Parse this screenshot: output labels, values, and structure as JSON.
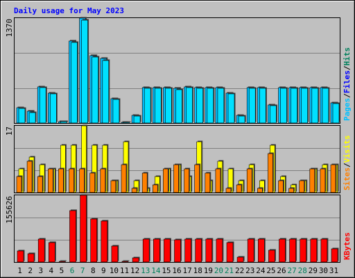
{
  "chart_data": [
    {
      "type": "bar",
      "title": "Daily usage for May 2023",
      "categories": [
        "1",
        "2",
        "3",
        "4",
        "5",
        "6",
        "7",
        "8",
        "9",
        "10",
        "11",
        "12",
        "13",
        "14",
        "15",
        "16",
        "17",
        "18",
        "19",
        "20",
        "21",
        "22",
        "23",
        "24",
        "25",
        "26",
        "27",
        "28",
        "29",
        "30",
        "31"
      ],
      "weekend_days": [
        "6",
        "7",
        "13",
        "14",
        "20",
        "21",
        "27",
        "28"
      ],
      "ymax_label": "1370",
      "ylim": [
        0,
        1370
      ],
      "ylabel_parts": [
        "Pages",
        "Files",
        "Hits"
      ],
      "separator": "/",
      "series": [
        {
          "name": "Hits",
          "values": [
            200,
            150,
            470,
            390,
            20,
            1070,
            1370,
            880,
            840,
            320,
            10,
            100,
            460,
            460,
            460,
            450,
            470,
            460,
            460,
            460,
            390,
            100,
            460,
            460,
            240,
            460,
            460,
            460,
            460,
            460,
            260
          ]
        },
        {
          "name": "Files",
          "values": [
            190,
            140,
            460,
            380,
            15,
            1050,
            1340,
            860,
            820,
            310,
            5,
            90,
            450,
            450,
            450,
            440,
            460,
            450,
            450,
            450,
            380,
            90,
            450,
            450,
            230,
            450,
            450,
            450,
            450,
            450,
            250
          ]
        },
        {
          "name": "Pages",
          "values": [
            0,
            0,
            0,
            0,
            0,
            0,
            0,
            0,
            0,
            0,
            0,
            0,
            0,
            0,
            0,
            0,
            0,
            0,
            0,
            0,
            0,
            0,
            0,
            0,
            0,
            0,
            0,
            0,
            0,
            0,
            0
          ]
        }
      ]
    },
    {
      "type": "bar",
      "ymax_label": "17",
      "ylim": [
        0,
        17
      ],
      "ylabel_parts": [
        "Sites",
        "Visits"
      ],
      "separator": "/",
      "series": [
        {
          "name": "Visits",
          "values": [
            6,
            9,
            7,
            6,
            12,
            12,
            17,
            12,
            12,
            3,
            13,
            3,
            1,
            4,
            6,
            7,
            4,
            13,
            3,
            8,
            6,
            3,
            7,
            3,
            12,
            4,
            2,
            3,
            6,
            7,
            7
          ]
        },
        {
          "name": "Sites",
          "values": [
            4,
            8,
            4,
            6,
            6,
            6,
            6,
            5,
            6,
            3,
            7,
            1,
            5,
            2,
            6,
            7,
            6,
            7,
            5,
            6,
            1,
            2,
            6,
            1,
            10,
            3,
            1,
            3,
            6,
            6,
            7
          ]
        }
      ]
    },
    {
      "type": "bar",
      "ymax_label": "155626",
      "ylim": [
        0,
        155626
      ],
      "ylabel_parts": [
        "KBytes"
      ],
      "separator": "",
      "series": [
        {
          "name": "KBytes",
          "values": [
            26000,
            20000,
            54000,
            45000,
            2000,
            120000,
            155626,
            100000,
            96000,
            37000,
            1000,
            10000,
            54000,
            54000,
            54000,
            52000,
            54000,
            53000,
            53000,
            53000,
            46000,
            12000,
            54000,
            54000,
            28000,
            54000,
            54000,
            54000,
            54000,
            54000,
            31000
          ]
        }
      ]
    }
  ],
  "colors": {
    "hits": "#00805c",
    "files": "#0000ff",
    "pages": "#00c0ff",
    "visits": "#ffff00",
    "sites": "#ff8000",
    "kbytes": "#ff0000",
    "title": "#0000ff",
    "weekend": "#00805c",
    "weekday": "#000000"
  }
}
